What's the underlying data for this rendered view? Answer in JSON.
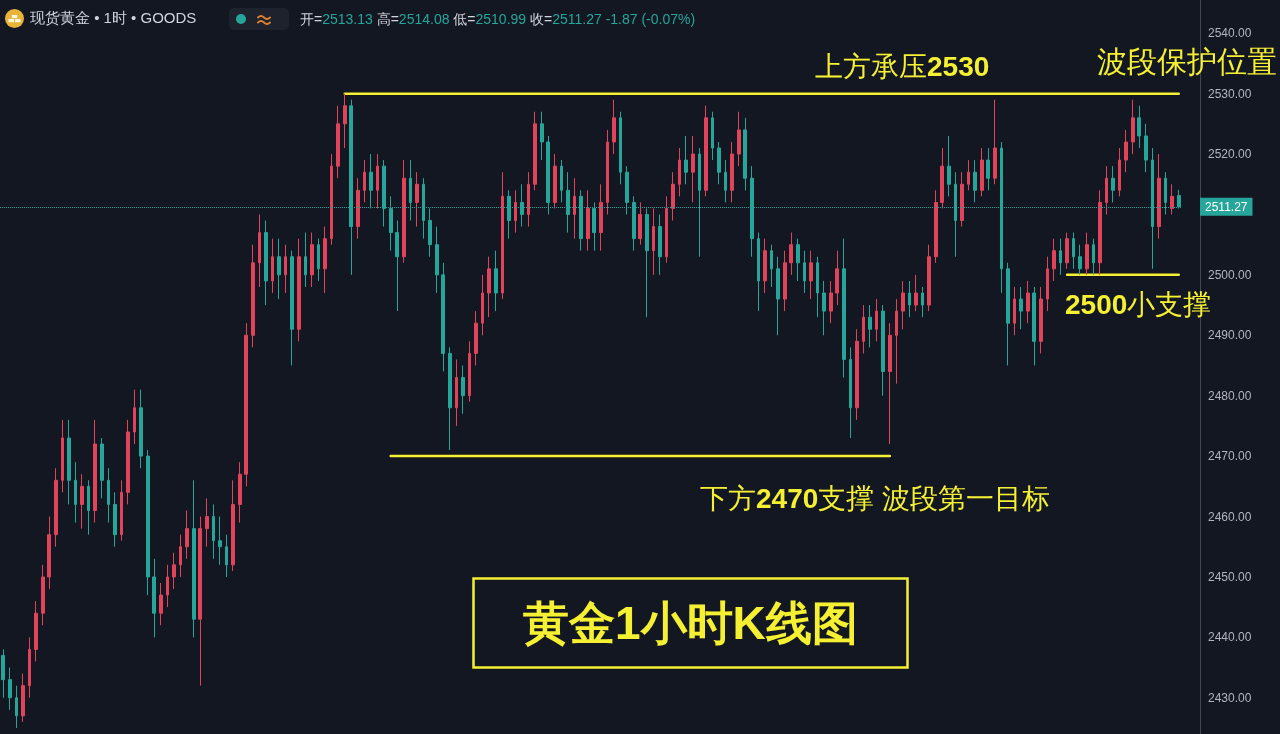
{
  "chart_data": {
    "type": "candlestick",
    "title": "黄金1小时K线图",
    "subtitle": "现货黄金 • 1时 • GOODS",
    "annotations": [
      "开=2513.13 高=2514.08 低=2510.99 收=2511.27 -1.87 (-0.07%)",
      {
        "text": "上方承压2530",
        "y": 2530
      },
      "波段保护位置",
      {
        "text": "下方2470支撑 波段第一目标",
        "y": 2470
      },
      {
        "text": "2500小支撑",
        "y": 2500
      }
    ],
    "categories": [
      null,
      null,
      null,
      null,
      null,
      null,
      null,
      null,
      null,
      null,
      null,
      null,
      null,
      null,
      null,
      null,
      null,
      null,
      null,
      null,
      null,
      null,
      null,
      null,
      null,
      null,
      null,
      null,
      null,
      null,
      null,
      null,
      null,
      null,
      null,
      null,
      null,
      null,
      null,
      null,
      null,
      null,
      null,
      null,
      null,
      null,
      null,
      null,
      null,
      null,
      null,
      null,
      null,
      null,
      null,
      null,
      null,
      null,
      null,
      null,
      null,
      null,
      null,
      null,
      null,
      null,
      null,
      null,
      null,
      null,
      null,
      null,
      null,
      null,
      null,
      null,
      null,
      null,
      null,
      null,
      null,
      null,
      null,
      null,
      null,
      null,
      null,
      null,
      null,
      null,
      null,
      null,
      null,
      null,
      null,
      null,
      null,
      null,
      null,
      null,
      null,
      null,
      null,
      null,
      null,
      null,
      null,
      null,
      null,
      null,
      null,
      null,
      null,
      null,
      null,
      null,
      null,
      null,
      null,
      null,
      null,
      null,
      null,
      null,
      null,
      null,
      null,
      null,
      null,
      null,
      null,
      null,
      null,
      null,
      null,
      null,
      null,
      null,
      null,
      null,
      null,
      null,
      null,
      null,
      null,
      null,
      null,
      null,
      null,
      null,
      null,
      null,
      null,
      null,
      null,
      null,
      null,
      null,
      null,
      null,
      null,
      null,
      null,
      null,
      null,
      null,
      null,
      null,
      null,
      null,
      null,
      null,
      null,
      null,
      null,
      null,
      null,
      null,
      null,
      null
    ],
    "ohlc": [
      [
        2437,
        2438,
        2430,
        2433
      ],
      [
        2433,
        2435,
        2428,
        2430
      ],
      [
        2430,
        2432,
        2425,
        2427
      ],
      [
        2427,
        2434,
        2426,
        2432
      ],
      [
        2432,
        2440,
        2430,
        2438
      ],
      [
        2438,
        2446,
        2436,
        2444
      ],
      [
        2444,
        2452,
        2442,
        2450
      ],
      [
        2450,
        2460,
        2448,
        2457
      ],
      [
        2457,
        2468,
        2455,
        2466
      ],
      [
        2466,
        2476,
        2464,
        2473
      ],
      [
        2473,
        2476,
        2462,
        2466
      ],
      [
        2466,
        2469,
        2459,
        2462
      ],
      [
        2462,
        2467,
        2458,
        2465
      ],
      [
        2465,
        2466,
        2457,
        2461
      ],
      [
        2461,
        2476,
        2459,
        2472
      ],
      [
        2472,
        2473,
        2463,
        2466
      ],
      [
        2466,
        2468,
        2459,
        2462
      ],
      [
        2462,
        2464,
        2455,
        2457
      ],
      [
        2457,
        2466,
        2456,
        2464
      ],
      [
        2464,
        2476,
        2462,
        2474
      ],
      [
        2474,
        2481,
        2472,
        2478
      ],
      [
        2478,
        2481,
        2468,
        2470
      ],
      [
        2470,
        2471,
        2447,
        2450
      ],
      [
        2450,
        2453,
        2440,
        2444
      ],
      [
        2444,
        2449,
        2442,
        2447
      ],
      [
        2447,
        2452,
        2445,
        2450
      ],
      [
        2450,
        2454,
        2448,
        2452
      ],
      [
        2452,
        2457,
        2450,
        2455
      ],
      [
        2455,
        2461,
        2453,
        2458
      ],
      [
        2458,
        2466,
        2440,
        2443
      ],
      [
        2443,
        2460,
        2432,
        2458
      ],
      [
        2458,
        2463,
        2455,
        2460
      ],
      [
        2460,
        2462,
        2453,
        2456
      ],
      [
        2456,
        2460,
        2452,
        2455
      ],
      [
        2455,
        2457,
        2450,
        2452
      ],
      [
        2452,
        2466,
        2451,
        2462
      ],
      [
        2462,
        2469,
        2459,
        2467
      ],
      [
        2467,
        2492,
        2465,
        2490
      ],
      [
        2490,
        2505,
        2488,
        2502
      ],
      [
        2502,
        2510,
        2498,
        2507
      ],
      [
        2507,
        2509,
        2495,
        2499
      ],
      [
        2499,
        2506,
        2497,
        2503
      ],
      [
        2503,
        2506,
        2496,
        2500
      ],
      [
        2500,
        2505,
        2497,
        2503
      ],
      [
        2503,
        2504,
        2485,
        2491
      ],
      [
        2491,
        2506,
        2489,
        2503
      ],
      [
        2503,
        2507,
        2498,
        2500
      ],
      [
        2500,
        2507,
        2498,
        2505
      ],
      [
        2505,
        2506,
        2499,
        2501
      ],
      [
        2501,
        2508,
        2497,
        2506
      ],
      [
        2506,
        2520,
        2505,
        2518
      ],
      [
        2518,
        2528,
        2516,
        2525
      ],
      [
        2525,
        2530,
        2521,
        2528
      ],
      [
        2528,
        2529,
        2500,
        2508
      ],
      [
        2508,
        2516,
        2506,
        2514
      ],
      [
        2514,
        2519,
        2512,
        2517
      ],
      [
        2517,
        2520,
        2511,
        2514
      ],
      [
        2514,
        2520,
        2511,
        2518
      ],
      [
        2518,
        2519,
        2508,
        2511
      ],
      [
        2511,
        2513,
        2504,
        2507
      ],
      [
        2507,
        2509,
        2494,
        2503
      ],
      [
        2503,
        2519,
        2502,
        2516
      ],
      [
        2516,
        2519,
        2509,
        2512
      ],
      [
        2512,
        2517,
        2508,
        2515
      ],
      [
        2515,
        2516,
        2506,
        2509
      ],
      [
        2509,
        2511,
        2503,
        2505
      ],
      [
        2505,
        2508,
        2497,
        2500
      ],
      [
        2500,
        2502,
        2484,
        2487
      ],
      [
        2487,
        2488,
        2471,
        2478
      ],
      [
        2478,
        2486,
        2475,
        2483
      ],
      [
        2483,
        2485,
        2477,
        2480
      ],
      [
        2480,
        2489,
        2479,
        2487
      ],
      [
        2487,
        2494,
        2485,
        2492
      ],
      [
        2492,
        2500,
        2490,
        2497
      ],
      [
        2497,
        2503,
        2493,
        2501
      ],
      [
        2501,
        2504,
        2494,
        2497
      ],
      [
        2497,
        2517,
        2496,
        2513
      ],
      [
        2513,
        2514,
        2506,
        2509
      ],
      [
        2509,
        2514,
        2507,
        2512
      ],
      [
        2512,
        2515,
        2508,
        2510
      ],
      [
        2510,
        2517,
        2508,
        2515
      ],
      [
        2515,
        2527,
        2514,
        2525
      ],
      [
        2525,
        2527,
        2519,
        2522
      ],
      [
        2522,
        2523,
        2510,
        2512
      ],
      [
        2512,
        2520,
        2511,
        2518
      ],
      [
        2518,
        2519,
        2512,
        2514
      ],
      [
        2514,
        2517,
        2507,
        2510
      ],
      [
        2510,
        2516,
        2506,
        2513
      ],
      [
        2513,
        2514,
        2504,
        2506
      ],
      [
        2506,
        2514,
        2504,
        2511
      ],
      [
        2511,
        2512,
        2504,
        2507
      ],
      [
        2507,
        2515,
        2504,
        2512
      ],
      [
        2512,
        2524,
        2510,
        2522
      ],
      [
        2522,
        2529,
        2520,
        2526
      ],
      [
        2526,
        2527,
        2515,
        2517
      ],
      [
        2517,
        2518,
        2510,
        2512
      ],
      [
        2512,
        2513,
        2504,
        2506
      ],
      [
        2506,
        2512,
        2505,
        2510
      ],
      [
        2510,
        2511,
        2493,
        2504
      ],
      [
        2504,
        2511,
        2500,
        2508
      ],
      [
        2508,
        2510,
        2500,
        2503
      ],
      [
        2503,
        2513,
        2502,
        2511
      ],
      [
        2511,
        2517,
        2509,
        2515
      ],
      [
        2515,
        2521,
        2513,
        2519
      ],
      [
        2519,
        2523,
        2515,
        2517
      ],
      [
        2517,
        2523,
        2512,
        2520
      ],
      [
        2520,
        2521,
        2503,
        2514
      ],
      [
        2514,
        2528,
        2513,
        2526
      ],
      [
        2526,
        2527,
        2519,
        2521
      ],
      [
        2521,
        2522,
        2515,
        2517
      ],
      [
        2517,
        2519,
        2512,
        2514
      ],
      [
        2514,
        2522,
        2512,
        2520
      ],
      [
        2520,
        2527,
        2518,
        2524
      ],
      [
        2524,
        2526,
        2514,
        2516
      ],
      [
        2516,
        2518,
        2503,
        2506
      ],
      [
        2506,
        2507,
        2494,
        2499
      ],
      [
        2499,
        2506,
        2497,
        2504
      ],
      [
        2504,
        2505,
        2498,
        2501
      ],
      [
        2501,
        2503,
        2490,
        2496
      ],
      [
        2496,
        2504,
        2494,
        2502
      ],
      [
        2502,
        2507,
        2500,
        2505
      ],
      [
        2505,
        2506,
        2499,
        2502
      ],
      [
        2502,
        2504,
        2497,
        2499
      ],
      [
        2499,
        2504,
        2496,
        2502
      ],
      [
        2502,
        2503,
        2493,
        2497
      ],
      [
        2497,
        2499,
        2490,
        2494
      ],
      [
        2494,
        2499,
        2492,
        2497
      ],
      [
        2497,
        2504,
        2495,
        2501
      ],
      [
        2501,
        2506,
        2483,
        2486
      ],
      [
        2486,
        2488,
        2473,
        2478
      ],
      [
        2478,
        2491,
        2476,
        2489
      ],
      [
        2489,
        2495,
        2487,
        2493
      ],
      [
        2493,
        2495,
        2488,
        2491
      ],
      [
        2491,
        2496,
        2489,
        2494
      ],
      [
        2494,
        2495,
        2480,
        2484
      ],
      [
        2484,
        2492,
        2472,
        2490
      ],
      [
        2490,
        2496,
        2482,
        2494
      ],
      [
        2494,
        2499,
        2491,
        2497
      ],
      [
        2497,
        2499,
        2493,
        2495
      ],
      [
        2495,
        2500,
        2494,
        2497
      ],
      [
        2497,
        2498,
        2493,
        2495
      ],
      [
        2495,
        2505,
        2494,
        2503
      ],
      [
        2503,
        2514,
        2502,
        2512
      ],
      [
        2512,
        2521,
        2511,
        2518
      ],
      [
        2518,
        2523,
        2513,
        2515
      ],
      [
        2515,
        2517,
        2503,
        2509
      ],
      [
        2509,
        2517,
        2508,
        2515
      ],
      [
        2515,
        2519,
        2514,
        2517
      ],
      [
        2517,
        2519,
        2512,
        2514
      ],
      [
        2514,
        2521,
        2513,
        2519
      ],
      [
        2519,
        2521,
        2514,
        2516
      ],
      [
        2516,
        2529,
        2515,
        2521
      ],
      [
        2521,
        2522,
        2497,
        2501
      ],
      [
        2501,
        2502,
        2485,
        2492
      ],
      [
        2492,
        2498,
        2490,
        2496
      ],
      [
        2496,
        2498,
        2491,
        2494
      ],
      [
        2494,
        2499,
        2492,
        2497
      ],
      [
        2497,
        2498,
        2485,
        2489
      ],
      [
        2489,
        2498,
        2487,
        2496
      ],
      [
        2496,
        2503,
        2494,
        2501
      ],
      [
        2501,
        2506,
        2499,
        2504
      ],
      [
        2504,
        2506,
        2500,
        2502
      ],
      [
        2502,
        2507,
        2501,
        2506
      ],
      [
        2506,
        2507,
        2501,
        2503
      ],
      [
        2503,
        2505,
        2500,
        2501
      ],
      [
        2501,
        2507,
        2500,
        2505
      ],
      [
        2505,
        2506,
        2500,
        2502
      ],
      [
        2502,
        2514,
        2500,
        2512
      ],
      [
        2512,
        2518,
        2510,
        2516
      ],
      [
        2516,
        2518,
        2512,
        2514
      ],
      [
        2514,
        2521,
        2513,
        2519
      ],
      [
        2519,
        2524,
        2517,
        2522
      ],
      [
        2522,
        2529,
        2520,
        2526
      ],
      [
        2526,
        2528,
        2521,
        2523
      ],
      [
        2523,
        2525,
        2517,
        2519
      ],
      [
        2519,
        2521,
        2501,
        2508
      ],
      [
        2508,
        2520,
        2506,
        2516
      ],
      [
        2516,
        2517,
        2510,
        2512
      ],
      [
        2511,
        2515,
        2510,
        2513
      ],
      [
        2513.13,
        2514.08,
        2510.99,
        2511.27
      ]
    ],
    "series": [
      {
        "type": "line",
        "color": "#f5f032",
        "values": [
          null,
          null,
          null,
          null,
          null,
          null,
          null,
          null,
          null,
          null,
          null,
          null,
          null,
          null,
          null,
          null,
          null,
          null,
          null,
          null,
          null,
          null,
          null,
          null,
          null,
          null,
          null,
          null,
          null,
          null,
          null,
          null,
          null,
          null,
          null,
          null,
          null,
          null,
          null,
          null,
          null,
          null,
          null,
          null,
          null,
          null,
          null,
          null,
          null,
          null,
          null,
          null,
          2530,
          2530,
          2530,
          2530,
          2530,
          2530,
          2530,
          2530,
          2530,
          2530,
          2530,
          2530,
          2530,
          2530,
          2530,
          2530,
          2530,
          2530,
          2530,
          2530,
          2530,
          2530,
          2530,
          2530,
          2530,
          2530,
          2530,
          2530,
          2530,
          2530,
          2530,
          2530,
          2530,
          2530,
          2530,
          2530,
          2530,
          2530,
          2530,
          2530,
          2530,
          2530,
          2530,
          2530,
          2530,
          2530,
          2530,
          2530,
          2530,
          2530,
          2530,
          2530,
          2530,
          2530,
          2530,
          2530,
          2530,
          2530,
          2530,
          2530,
          2530,
          2530,
          2530,
          2530,
          2530,
          2530,
          2530,
          2530,
          2530,
          2530,
          2530,
          2530,
          2530,
          2530,
          2530,
          2530,
          2530,
          2530,
          2530,
          2530,
          2530,
          2530,
          2530,
          2530,
          2530,
          2530,
          2530,
          2530,
          2530,
          2530,
          2530,
          2530,
          2530,
          2530,
          2530,
          2530,
          2530,
          2530,
          2530,
          2530,
          2530,
          2530,
          2530,
          2530,
          2530,
          2530,
          2530,
          2530,
          2530,
          2530,
          2530,
          2530,
          2530,
          2530,
          2530,
          2530,
          2530,
          2530,
          2530,
          2530,
          2530,
          2530,
          2530,
          2530,
          2530,
          2530,
          2530,
          2530
        ]
      },
      {
        "type": "line",
        "color": "#f5f032",
        "values": [
          null,
          null,
          null,
          null,
          null,
          null,
          null,
          null,
          null,
          null,
          null,
          null,
          null,
          null,
          null,
          null,
          null,
          null,
          null,
          null,
          null,
          null,
          null,
          null,
          null,
          null,
          null,
          null,
          null,
          null,
          null,
          null,
          null,
          null,
          null,
          null,
          null,
          null,
          null,
          null,
          null,
          null,
          null,
          null,
          null,
          null,
          null,
          null,
          null,
          null,
          null,
          null,
          null,
          null,
          null,
          null,
          null,
          null,
          null,
          2470,
          2470,
          2470,
          2470,
          2470,
          2470,
          2470,
          2470,
          2470,
          2470,
          2470,
          2470,
          2470,
          2470,
          2470,
          2470,
          2470,
          2470,
          2470,
          2470,
          2470,
          2470,
          2470,
          2470,
          2470,
          2470,
          2470,
          2470,
          2470,
          2470,
          2470,
          2470,
          2470,
          2470,
          2470,
          2470,
          2470,
          2470,
          2470,
          2470,
          2470,
          2470,
          2470,
          2470,
          2470,
          2470,
          2470,
          2470,
          2470,
          2470,
          2470,
          2470,
          2470,
          2470,
          2470,
          2470,
          2470,
          2470,
          2470,
          2470,
          2470,
          2470,
          2470,
          2470,
          2470,
          2470,
          2470,
          2470,
          2470,
          2470,
          2470,
          2470,
          2470,
          2470,
          2470,
          2470,
          2470,
          null,
          null,
          null,
          null,
          null,
          null,
          null,
          null,
          null,
          null,
          null,
          null,
          null,
          null,
          null,
          null,
          null,
          null,
          null,
          null,
          null,
          null,
          null,
          null,
          null,
          null,
          null,
          null,
          null,
          null,
          null,
          null,
          null,
          null,
          null,
          null,
          null,
          null,
          null,
          null,
          null,
          null,
          null,
          null
        ]
      },
      {
        "type": "line",
        "color": "#f5f032",
        "values": [
          null,
          null,
          null,
          null,
          null,
          null,
          null,
          null,
          null,
          null,
          null,
          null,
          null,
          null,
          null,
          null,
          null,
          null,
          null,
          null,
          null,
          null,
          null,
          null,
          null,
          null,
          null,
          null,
          null,
          null,
          null,
          null,
          null,
          null,
          null,
          null,
          null,
          null,
          null,
          null,
          null,
          null,
          null,
          null,
          null,
          null,
          null,
          null,
          null,
          null,
          null,
          null,
          null,
          null,
          null,
          null,
          null,
          null,
          null,
          null,
          null,
          null,
          null,
          null,
          null,
          null,
          null,
          null,
          null,
          null,
          null,
          null,
          null,
          null,
          null,
          null,
          null,
          null,
          null,
          null,
          null,
          null,
          null,
          null,
          null,
          null,
          null,
          null,
          null,
          null,
          null,
          null,
          null,
          null,
          null,
          null,
          null,
          null,
          null,
          null,
          null,
          null,
          null,
          null,
          null,
          null,
          null,
          null,
          null,
          null,
          null,
          null,
          null,
          null,
          null,
          null,
          null,
          null,
          null,
          null,
          null,
          null,
          null,
          null,
          null,
          null,
          null,
          null,
          null,
          null,
          null,
          null,
          null,
          null,
          null,
          null,
          null,
          null,
          null,
          null,
          null,
          null,
          null,
          null,
          null,
          null,
          null,
          null,
          null,
          null,
          null,
          null,
          null,
          null,
          null,
          null,
          null,
          null,
          null,
          null,
          null,
          null,
          2500,
          2500,
          2500,
          2500,
          2500,
          2500,
          2500,
          2500,
          2500,
          2500,
          2500,
          2500,
          2500,
          2500,
          2500,
          2500,
          2500,
          2500
        ]
      }
    ],
    "marker": "none",
    "ylim": [
      2424,
      2545.5
    ],
    "yticks": [
      {
        "value": 2430,
        "label": "2430.00"
      },
      {
        "value": 2440,
        "label": "2440.00"
      },
      {
        "value": 2450,
        "label": "2450.00"
      },
      {
        "value": 2460,
        "label": "2460.00"
      },
      {
        "value": 2470,
        "label": "2470.00"
      },
      {
        "value": 2480,
        "label": "2480.00"
      },
      {
        "value": 2490,
        "label": "2490.00"
      },
      {
        "value": 2500,
        "label": "2500.00"
      },
      {
        "value": 2520,
        "label": "2520.00"
      },
      {
        "value": 2530,
        "label": "2530.00"
      },
      {
        "value": 2540,
        "label": "2540.00"
      }
    ],
    "tick_labels": "y",
    "ref_lines": [
      {
        "axis": "y",
        "value": 2511.27,
        "label": "2511.27",
        "color": "#26a69a",
        "line_style": "dotted"
      }
    ]
  }
}
